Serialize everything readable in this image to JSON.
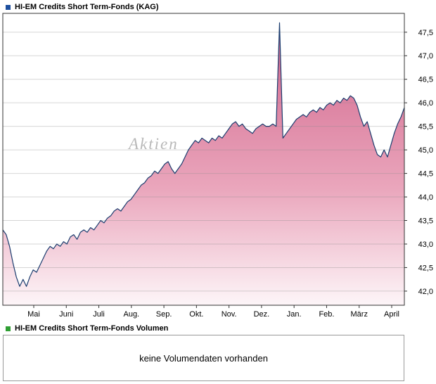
{
  "price_chart": {
    "legend_label": "HI-EM Credits Short Term-Fonds (KAG)",
    "legend_color": "#1d4f9e",
    "watermark": "Aktien"
  },
  "volume_chart": {
    "legend_label": "HI-EM Credits Short Term-Fonds Volumen",
    "legend_color": "#2f9e33",
    "empty_message": "keine Volumendaten vorhanden"
  },
  "chart_data": {
    "type": "area",
    "title": "HI-EM Credits Short Term-Fonds (KAG)",
    "xlabel": "",
    "ylabel": "",
    "x_tick_labels": [
      "Mai",
      "Juni",
      "Juli",
      "Aug.",
      "Sep.",
      "Okt.",
      "Nov.",
      "Dez.",
      "Jan.",
      "Feb.",
      "März",
      "April"
    ],
    "y_ticks": [
      42.0,
      42.5,
      43.0,
      43.5,
      44.0,
      44.5,
      45.0,
      45.5,
      46.0,
      46.5,
      47.0,
      47.5
    ],
    "y_tick_labels": [
      "42,0",
      "42,5",
      "43,0",
      "43,5",
      "44,0",
      "44,5",
      "45,0",
      "45,5",
      "46,0",
      "46,5",
      "47,0",
      "47,5"
    ],
    "ylim": [
      41.7,
      47.9
    ],
    "grid": true,
    "legend_position": "top-left",
    "line_color": "#1b3c6e",
    "fill_stops": [
      [
        "0%",
        "#cf6088"
      ],
      [
        "60%",
        "#eaa6bc"
      ],
      [
        "100%",
        "#fdf5f8"
      ]
    ],
    "values": [
      43.3,
      43.2,
      42.95,
      42.6,
      42.3,
      42.1,
      42.25,
      42.1,
      42.3,
      42.45,
      42.4,
      42.55,
      42.7,
      42.85,
      42.95,
      42.9,
      43.0,
      42.95,
      43.05,
      43.0,
      43.15,
      43.2,
      43.1,
      43.25,
      43.3,
      43.25,
      43.35,
      43.3,
      43.4,
      43.5,
      43.45,
      43.55,
      43.6,
      43.7,
      43.75,
      43.7,
      43.8,
      43.9,
      43.95,
      44.05,
      44.15,
      44.25,
      44.3,
      44.4,
      44.45,
      44.55,
      44.5,
      44.6,
      44.7,
      44.75,
      44.6,
      44.5,
      44.6,
      44.7,
      44.85,
      45.0,
      45.1,
      45.2,
      45.15,
      45.25,
      45.2,
      45.15,
      45.25,
      45.2,
      45.3,
      45.25,
      45.35,
      45.45,
      45.55,
      45.6,
      45.5,
      45.55,
      45.45,
      45.4,
      45.35,
      45.45,
      45.5,
      45.55,
      45.5,
      45.5,
      45.55,
      45.5,
      47.7,
      45.25,
      45.35,
      45.45,
      45.55,
      45.65,
      45.7,
      45.75,
      45.7,
      45.8,
      45.85,
      45.8,
      45.9,
      45.85,
      45.95,
      46.0,
      45.95,
      46.05,
      46.0,
      46.1,
      46.05,
      46.15,
      46.1,
      45.95,
      45.7,
      45.5,
      45.6,
      45.35,
      45.1,
      44.9,
      44.85,
      45.0,
      44.85,
      45.1,
      45.35,
      45.55,
      45.7,
      45.9
    ]
  }
}
